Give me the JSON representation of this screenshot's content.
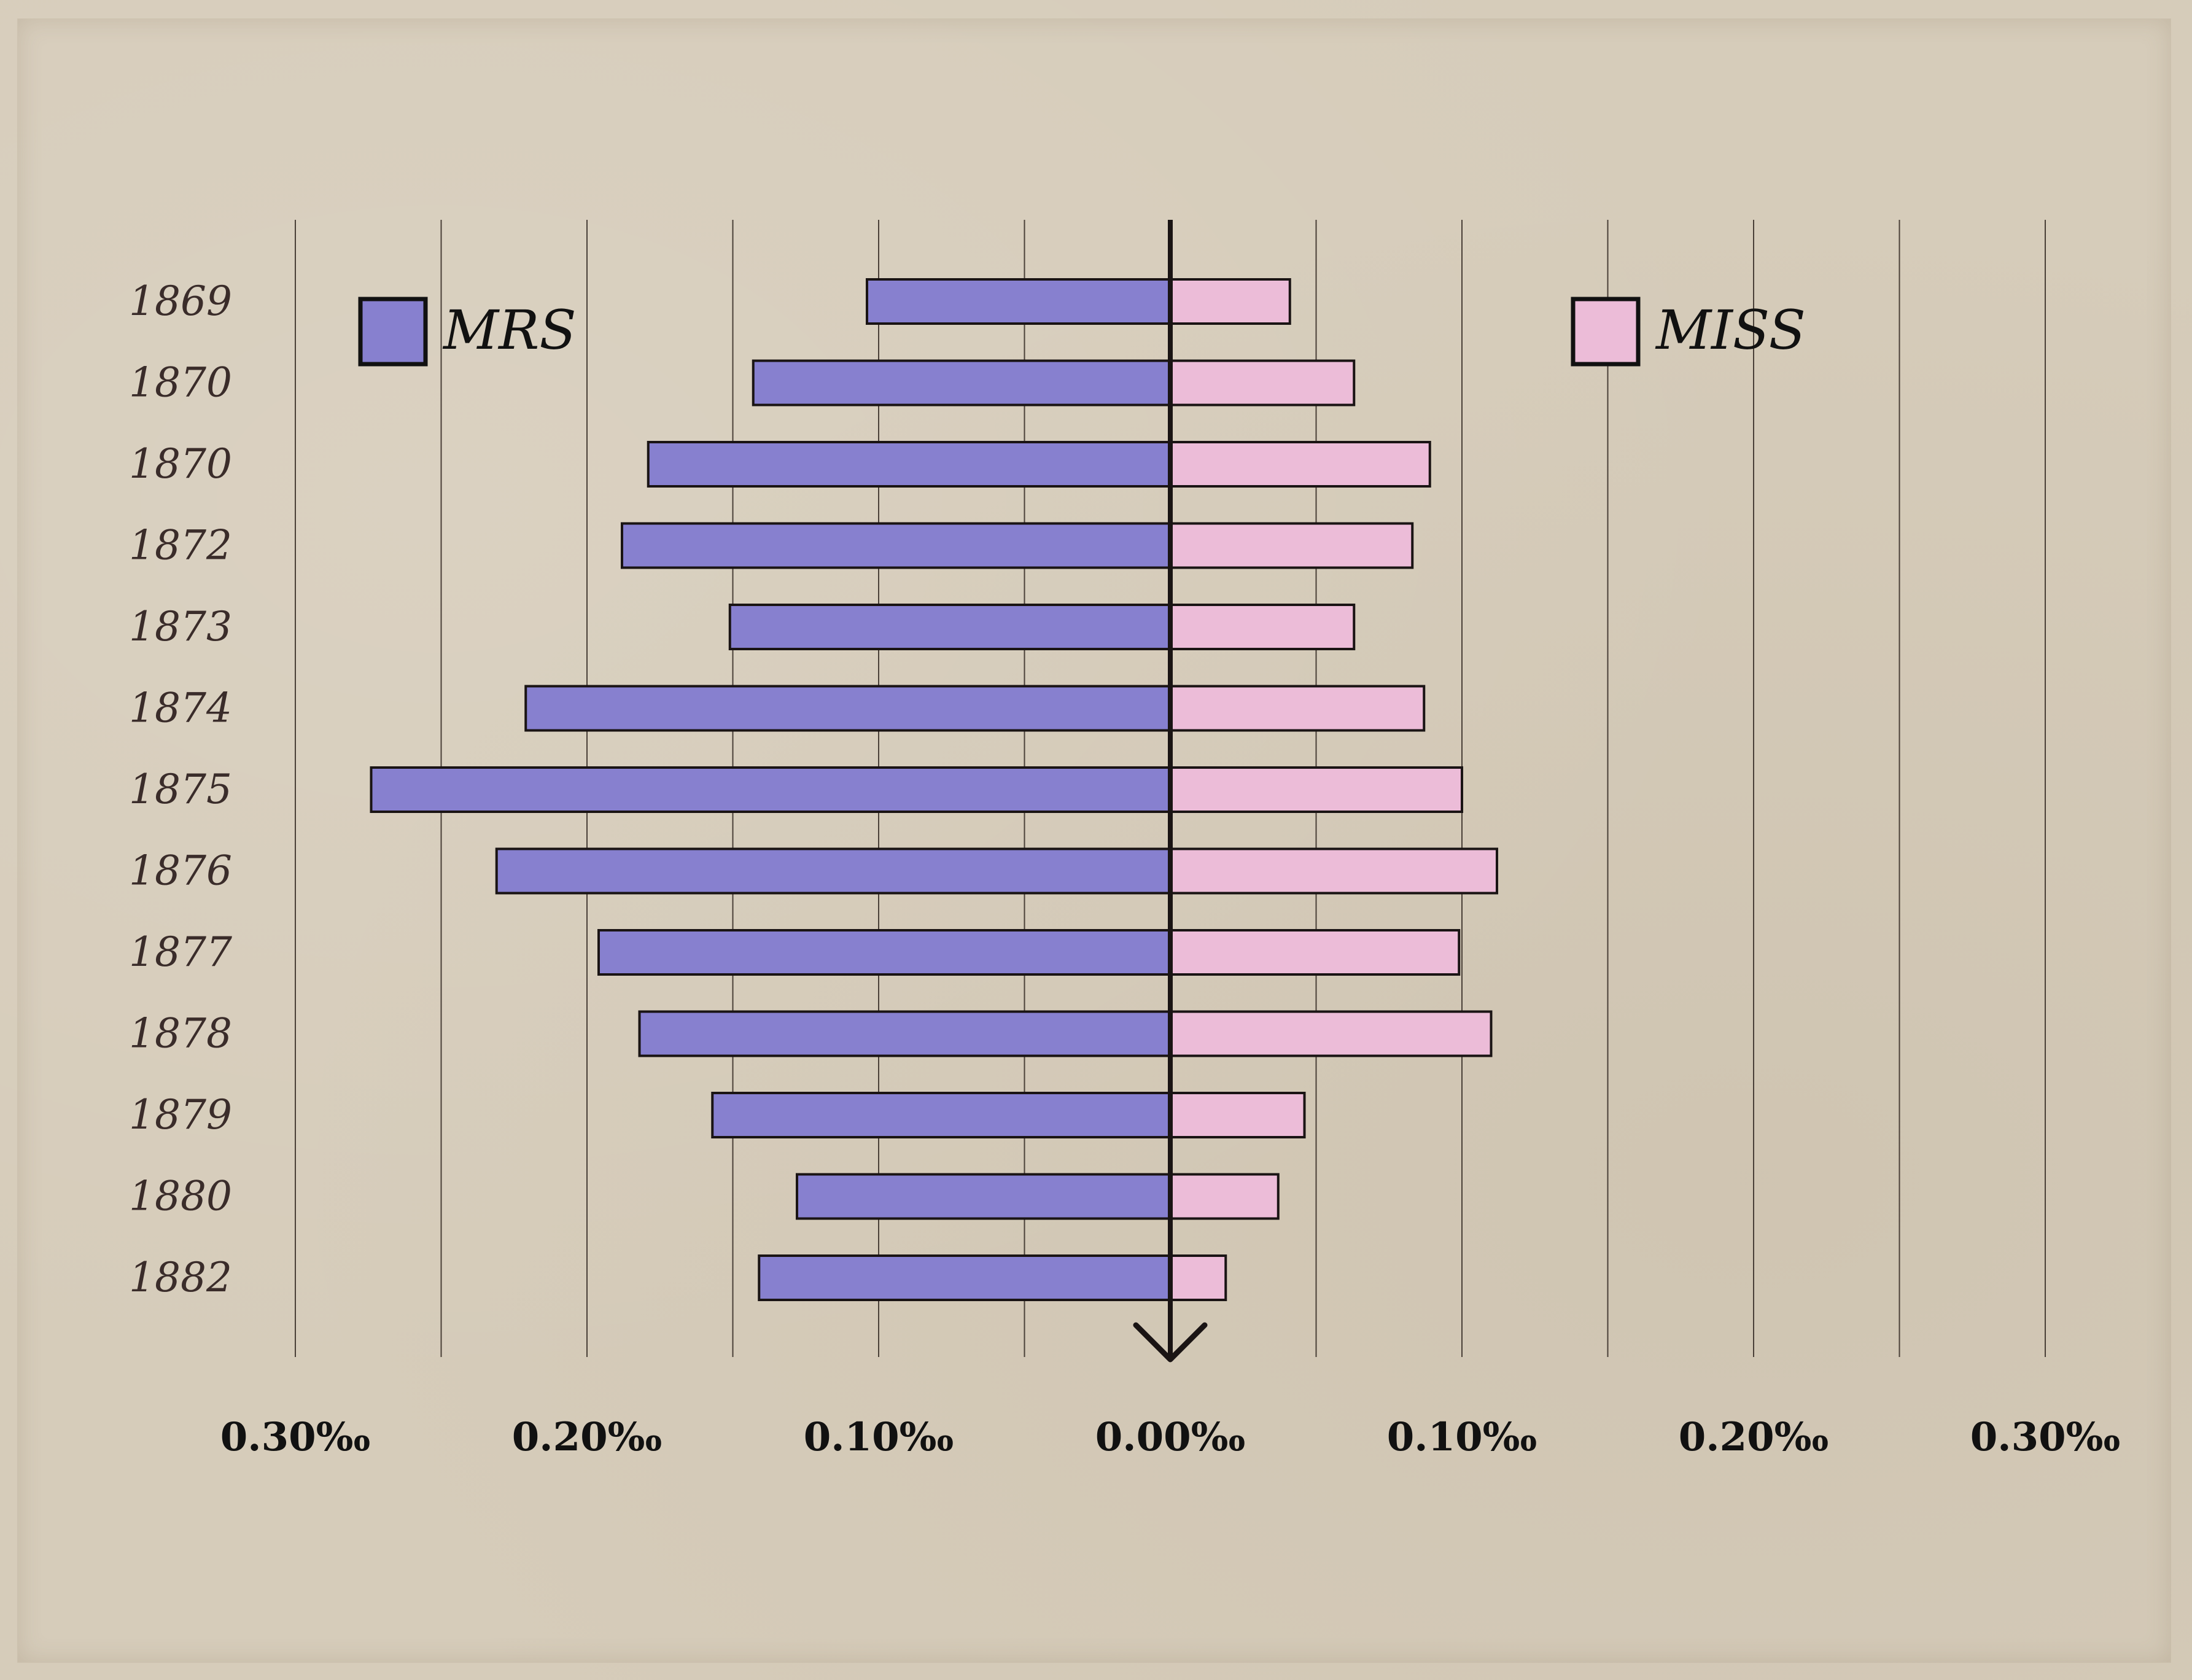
{
  "chart_data": {
    "type": "bar",
    "orientation": "horizontal-diverging",
    "categories": [
      "1869",
      "1870",
      "1870",
      "1872",
      "1873",
      "1874",
      "1875",
      "1876",
      "1877",
      "1878",
      "1879",
      "1880",
      "1882"
    ],
    "series": [
      {
        "name": "MRS",
        "side": "left",
        "color": "#8780cf",
        "values": [
          0.104,
          0.143,
          0.179,
          0.188,
          0.151,
          0.221,
          0.274,
          0.231,
          0.196,
          0.182,
          0.157,
          0.128,
          0.141
        ]
      },
      {
        "name": "MISS",
        "side": "right",
        "color": "#ecbcd8",
        "values": [
          0.041,
          0.063,
          0.089,
          0.083,
          0.063,
          0.087,
          0.1,
          0.112,
          0.099,
          0.11,
          0.046,
          0.037,
          0.019
        ]
      }
    ],
    "x_ticks": [
      "0.30‰",
      "0.20‰",
      "0.10‰",
      "0.00‰",
      "0.10‰",
      "0.20‰",
      "0.30‰"
    ],
    "xlim": [
      -0.3,
      0.3
    ],
    "grid": true,
    "legend": [
      {
        "label": "MRS",
        "placement": "top-left"
      },
      {
        "label": "MISS",
        "placement": "top-right"
      }
    ],
    "title": "",
    "xlabel": "",
    "ylabel": ""
  }
}
